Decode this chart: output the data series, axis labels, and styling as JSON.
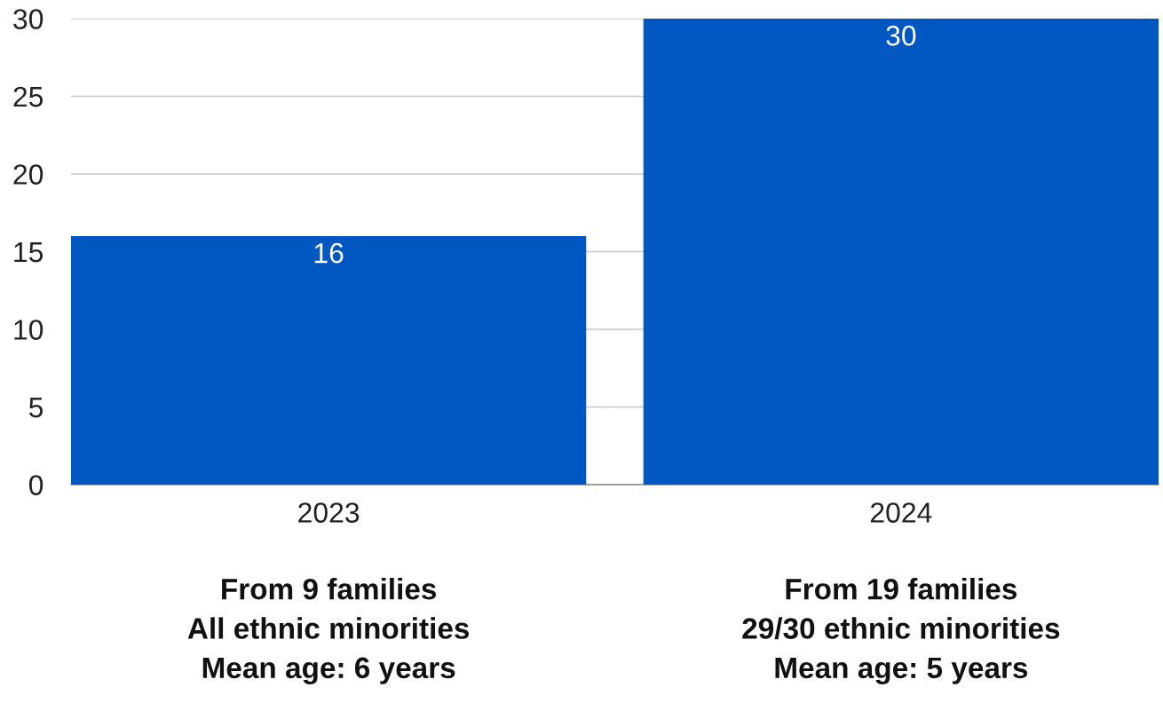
{
  "chart_data": {
    "type": "bar",
    "categories": [
      "2023",
      "2024"
    ],
    "values": [
      16,
      30
    ],
    "color": "#0057c2",
    "data_labels": true,
    "ylim": [
      0,
      30
    ],
    "yticks": [
      0,
      5,
      10,
      15,
      20,
      25,
      30
    ],
    "grid": "y",
    "annotations": [
      "From 9 families\nAll ethnic minorities\nMean age: 6 years",
      "From 19 families\n29/30 ethnic minorities\nMean age: 5 years"
    ]
  }
}
